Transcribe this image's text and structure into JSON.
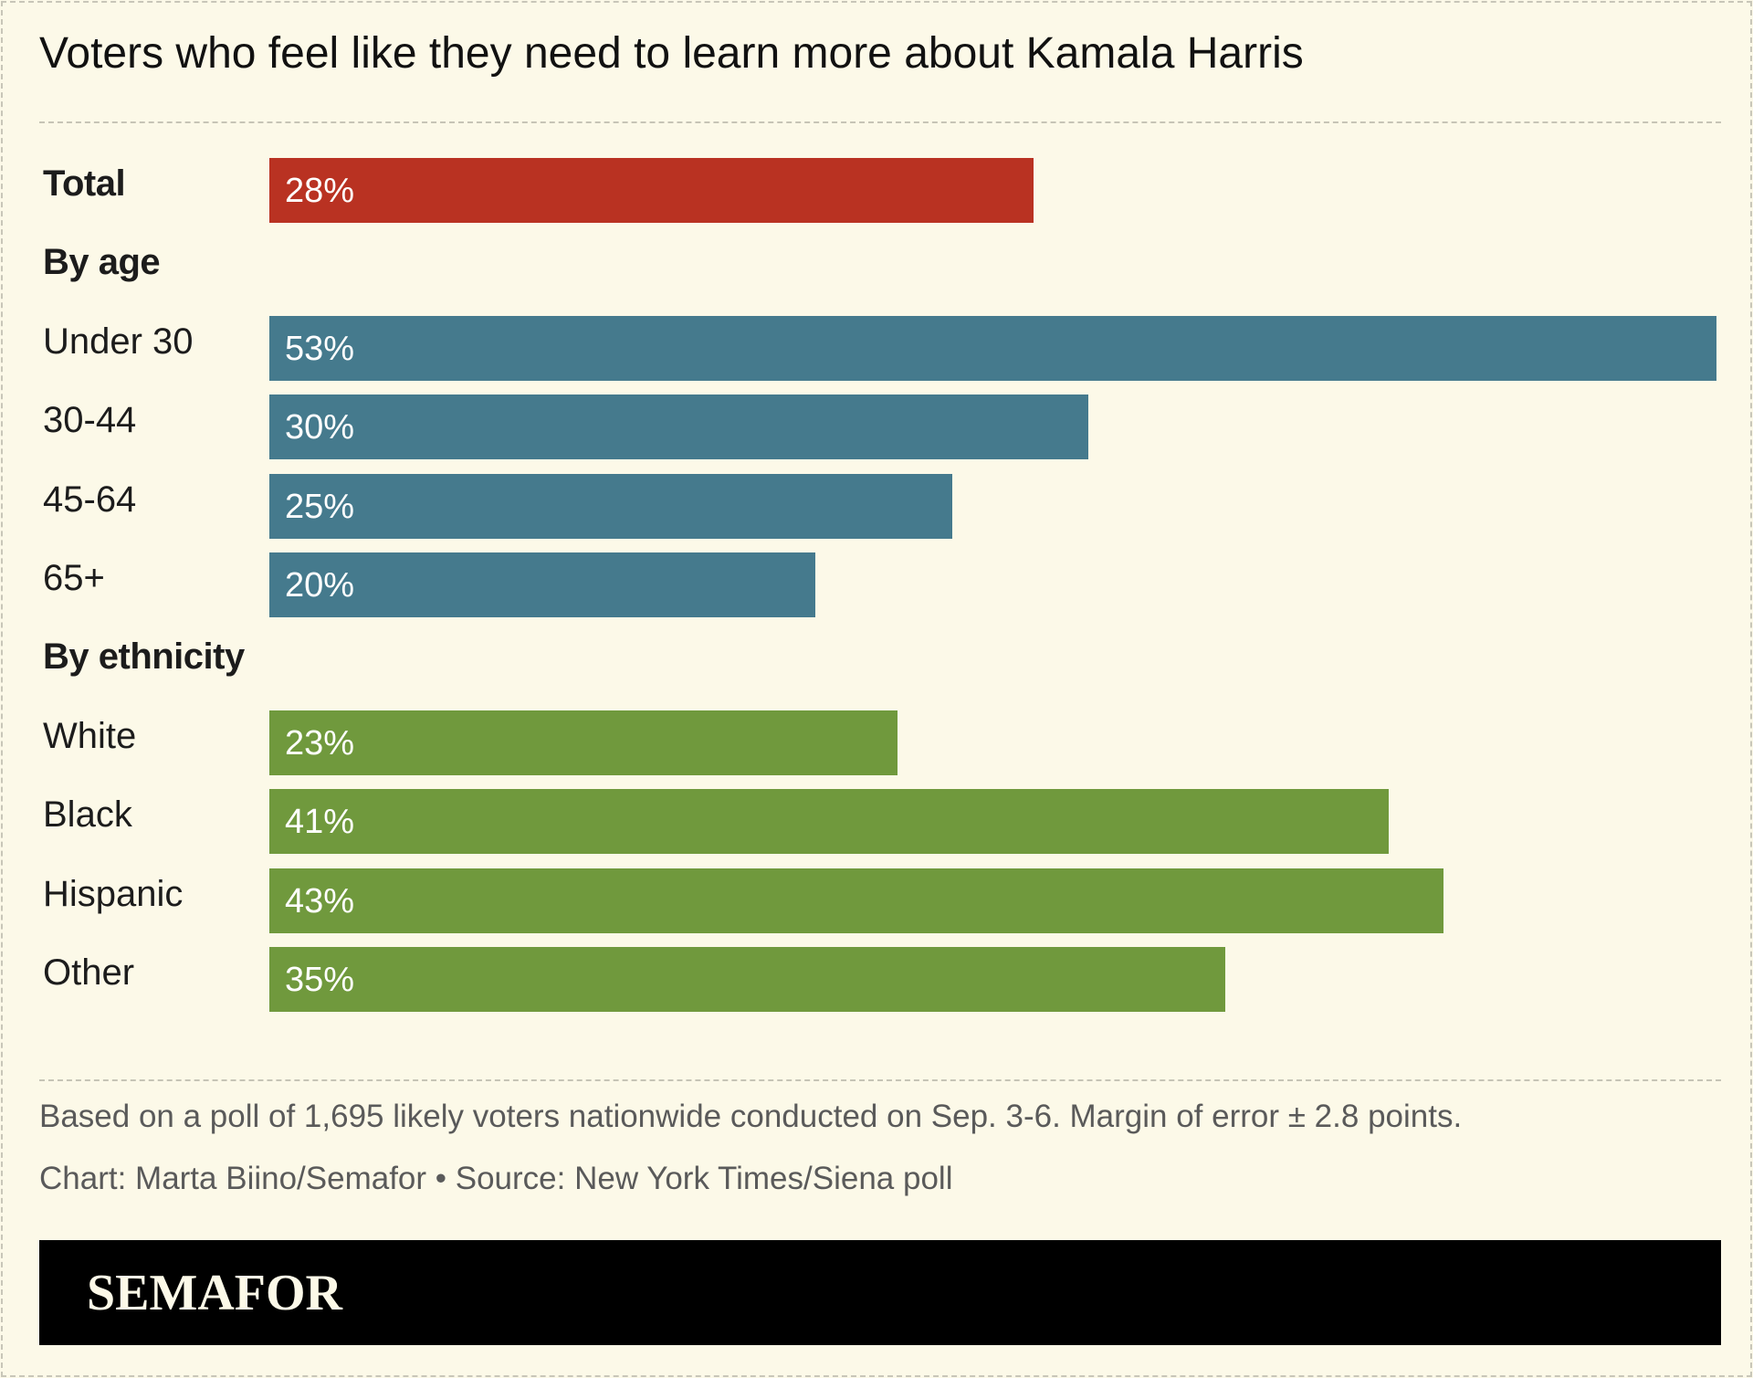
{
  "chart_data": {
    "type": "bar",
    "orientation": "horizontal",
    "title": "Voters who feel like they need to learn more about Kamala Harris",
    "unit": "%",
    "xlim": [
      0,
      53
    ],
    "grid": false,
    "legend": "none",
    "groups": [
      {
        "name": "",
        "color": "#b93222",
        "rows": [
          {
            "label": "Total",
            "value": 28,
            "display": "28%"
          }
        ]
      },
      {
        "name": "By age",
        "color": "#457a8d",
        "rows": [
          {
            "label": "Under 30",
            "value": 53,
            "display": "53%"
          },
          {
            "label": "30-44",
            "value": 30,
            "display": "30%"
          },
          {
            "label": "45-64",
            "value": 25,
            "display": "25%"
          },
          {
            "label": "65+",
            "value": 20,
            "display": "20%"
          }
        ]
      },
      {
        "name": "By ethnicity",
        "color": "#70993d",
        "rows": [
          {
            "label": "White",
            "value": 23,
            "display": "23%"
          },
          {
            "label": "Black",
            "value": 41,
            "display": "41%"
          },
          {
            "label": "Hispanic",
            "value": 43,
            "display": "43%"
          },
          {
            "label": "Other",
            "value": 35,
            "display": "35%"
          }
        ]
      }
    ]
  },
  "footer": {
    "note": "Based on a poll of 1,695 likely voters nationwide conducted on Sep. 3-6. Margin of error ± 2.8 points.",
    "credit": "Chart: Marta Biino/Semafor • Source: New York Times/Siena poll"
  },
  "brand": {
    "name": "SEMAFOR"
  }
}
